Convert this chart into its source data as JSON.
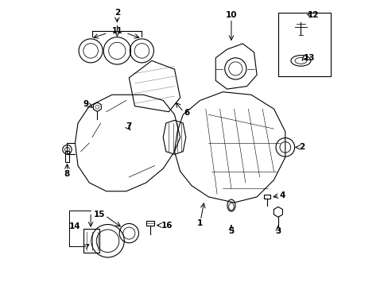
{
  "background_color": "#ffffff",
  "line_color": "#000000",
  "label_fontsize": 7.5
}
